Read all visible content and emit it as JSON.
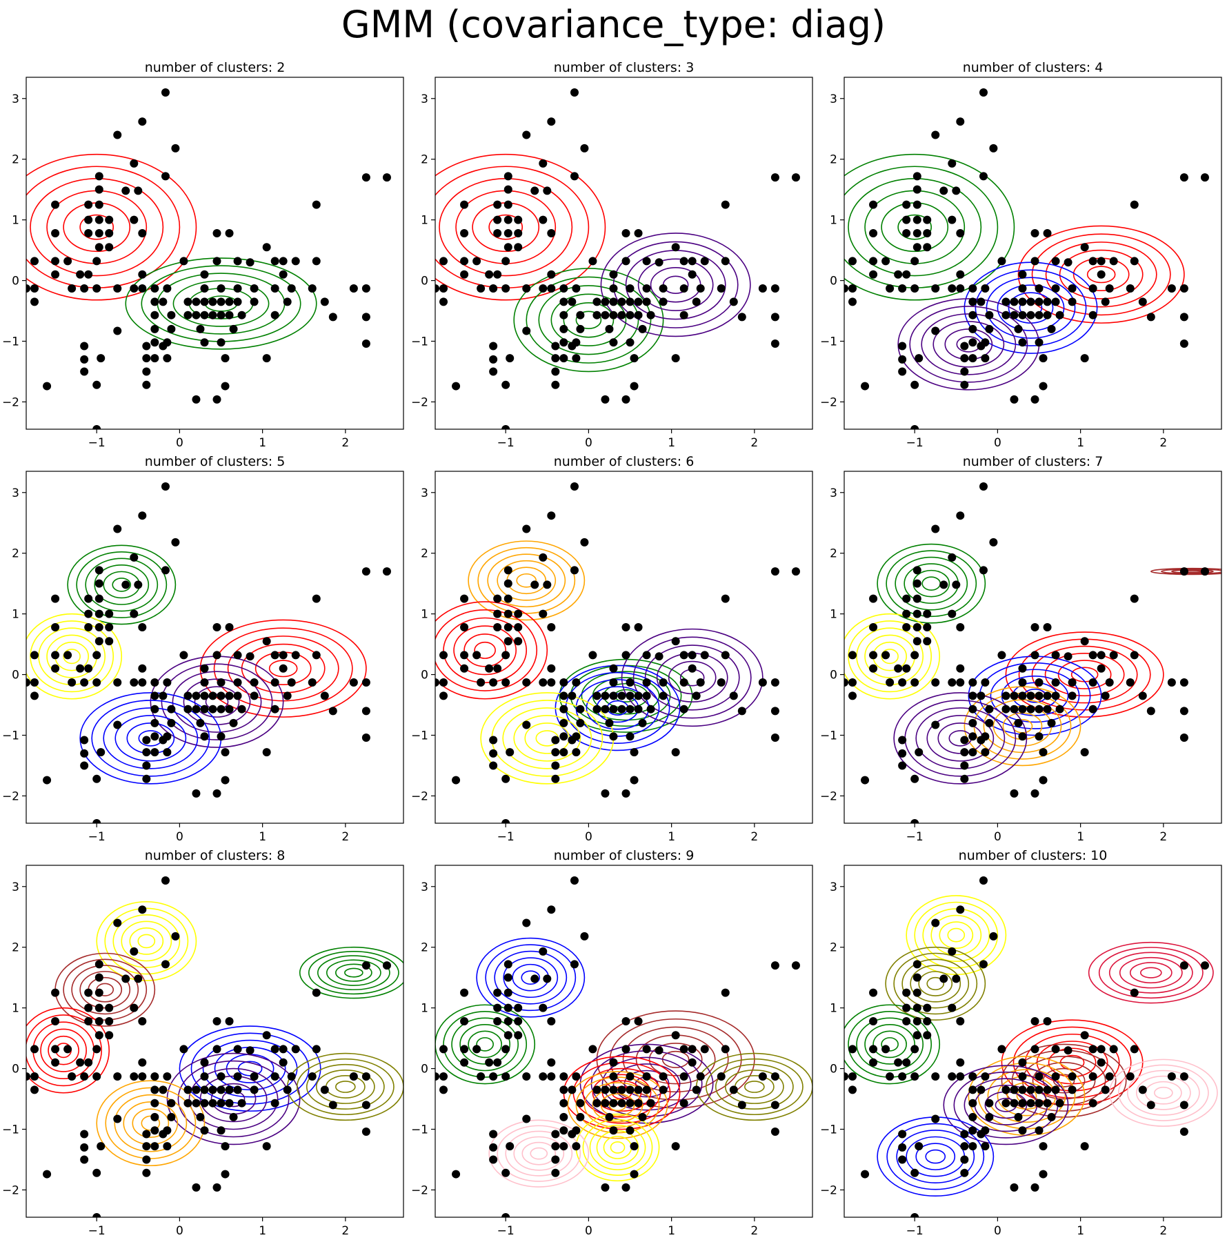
{
  "figure": {
    "title": "GMM (covariance_type: diag)"
  },
  "colors": {
    "points": "#000000",
    "red": "#ff0000",
    "green": "#008000",
    "indigo": "#4b0082",
    "blue": "#0000ff",
    "yellow": "#ffff00",
    "orange": "#ffa500",
    "brown": "#a52a2a",
    "olive": "#808000",
    "pink": "#ffc0cb",
    "crimson": "#dc143c"
  },
  "chart_data": {
    "type": "scatter",
    "xlim": [
      -1.85,
      2.7
    ],
    "ylim": [
      -2.45,
      3.35
    ],
    "xticks": [
      -1,
      0,
      1,
      2
    ],
    "yticks": [
      -2,
      -1,
      0,
      1,
      2,
      3
    ],
    "points": [
      [
        -0.17,
        3.1
      ],
      [
        -0.45,
        2.62
      ],
      [
        -0.75,
        2.4
      ],
      [
        -0.05,
        2.18
      ],
      [
        -0.55,
        1.93
      ],
      [
        -0.17,
        1.72
      ],
      [
        -0.97,
        1.72
      ],
      [
        2.25,
        1.7
      ],
      [
        2.5,
        1.7
      ],
      [
        -0.97,
        1.5
      ],
      [
        -0.65,
        1.48
      ],
      [
        -0.5,
        1.48
      ],
      [
        -1.5,
        1.25
      ],
      [
        -1.1,
        1.25
      ],
      [
        -0.97,
        1.25
      ],
      [
        1.65,
        1.25
      ],
      [
        -1.1,
        1.0
      ],
      [
        -0.97,
        1.0
      ],
      [
        -0.85,
        1.0
      ],
      [
        -0.55,
        1.0
      ],
      [
        -1.1,
        0.78
      ],
      [
        -0.97,
        0.78
      ],
      [
        -0.85,
        0.78
      ],
      [
        -1.5,
        0.78
      ],
      [
        -0.45,
        0.78
      ],
      [
        0.45,
        0.78
      ],
      [
        0.6,
        0.78
      ],
      [
        -0.97,
        0.55
      ],
      [
        -0.85,
        0.55
      ],
      [
        1.05,
        0.55
      ],
      [
        -1.75,
        0.32
      ],
      [
        -1.5,
        0.32
      ],
      [
        -1.35,
        0.32
      ],
      [
        -1.0,
        0.32
      ],
      [
        0.05,
        0.32
      ],
      [
        0.45,
        0.32
      ],
      [
        0.7,
        0.32
      ],
      [
        1.15,
        0.32
      ],
      [
        1.25,
        0.32
      ],
      [
        1.4,
        0.32
      ],
      [
        1.65,
        0.32
      ],
      [
        0.85,
        0.3
      ],
      [
        -1.5,
        0.1
      ],
      [
        -1.2,
        0.1
      ],
      [
        -1.1,
        0.1
      ],
      [
        -0.45,
        0.1
      ],
      [
        0.3,
        0.1
      ],
      [
        1.25,
        0.1
      ],
      [
        -1.85,
        -0.13
      ],
      [
        -1.75,
        -0.13
      ],
      [
        -1.3,
        -0.13
      ],
      [
        -1.15,
        -0.13
      ],
      [
        -1.0,
        -0.13
      ],
      [
        -0.75,
        -0.13
      ],
      [
        -0.55,
        -0.13
      ],
      [
        -0.45,
        -0.13
      ],
      [
        -0.3,
        -0.13
      ],
      [
        -0.15,
        -0.13
      ],
      [
        0.3,
        -0.13
      ],
      [
        0.5,
        -0.13
      ],
      [
        0.7,
        -0.13
      ],
      [
        0.9,
        -0.13
      ],
      [
        1.15,
        -0.13
      ],
      [
        1.35,
        -0.13
      ],
      [
        1.6,
        -0.13
      ],
      [
        2.1,
        -0.13
      ],
      [
        2.25,
        -0.13
      ],
      [
        -1.75,
        -0.35
      ],
      [
        -0.3,
        -0.35
      ],
      [
        -0.2,
        -0.35
      ],
      [
        0.1,
        -0.35
      ],
      [
        0.2,
        -0.35
      ],
      [
        0.3,
        -0.35
      ],
      [
        0.4,
        -0.35
      ],
      [
        0.5,
        -0.35
      ],
      [
        0.6,
        -0.35
      ],
      [
        0.7,
        -0.35
      ],
      [
        0.9,
        -0.35
      ],
      [
        1.3,
        -0.35
      ],
      [
        1.75,
        -0.35
      ],
      [
        -0.3,
        -0.57
      ],
      [
        -0.1,
        -0.57
      ],
      [
        0.1,
        -0.57
      ],
      [
        0.2,
        -0.57
      ],
      [
        0.3,
        -0.57
      ],
      [
        0.4,
        -0.57
      ],
      [
        0.5,
        -0.57
      ],
      [
        0.6,
        -0.57
      ],
      [
        0.75,
        -0.57
      ],
      [
        1.15,
        -0.57
      ],
      [
        1.85,
        -0.6
      ],
      [
        2.25,
        -0.6
      ],
      [
        -0.3,
        -0.8
      ],
      [
        -0.1,
        -0.8
      ],
      [
        0.25,
        -0.8
      ],
      [
        0.65,
        -0.8
      ],
      [
        -0.75,
        -0.83
      ],
      [
        -0.3,
        -1.02
      ],
      [
        -0.15,
        -1.02
      ],
      [
        0.3,
        -1.02
      ],
      [
        0.5,
        -1.02
      ],
      [
        2.25,
        -1.04
      ],
      [
        -0.4,
        -1.08
      ],
      [
        -0.2,
        -1.08
      ],
      [
        -1.15,
        -1.08
      ],
      [
        -0.95,
        -1.28
      ],
      [
        -0.4,
        -1.28
      ],
      [
        -0.3,
        -1.28
      ],
      [
        -0.15,
        -1.28
      ],
      [
        1.05,
        -1.28
      ],
      [
        0.55,
        -1.28
      ],
      [
        -1.15,
        -1.3
      ],
      [
        -0.4,
        -1.5
      ],
      [
        -1.15,
        -1.5
      ],
      [
        -0.4,
        -1.72
      ],
      [
        -1.0,
        -1.72
      ],
      [
        -1.6,
        -1.74
      ],
      [
        0.55,
        -1.74
      ],
      [
        0.2,
        -1.96
      ],
      [
        0.45,
        -1.96
      ],
      [
        -1.0,
        -2.45
      ]
    ],
    "subplots": [
      {
        "title": "number of clusters: 2",
        "components": [
          {
            "color": "red",
            "mean": [
              -1.0,
              0.88
            ],
            "scale": [
              1.2,
              1.2
            ],
            "levels": 6
          },
          {
            "color": "green",
            "mean": [
              0.5,
              -0.38
            ],
            "scale": [
              1.15,
              0.75
            ],
            "levels": 6
          }
        ]
      },
      {
        "title": "number of clusters: 3",
        "components": [
          {
            "color": "red",
            "mean": [
              -1.0,
              0.88
            ],
            "scale": [
              1.2,
              1.2
            ],
            "levels": 6
          },
          {
            "color": "green",
            "mean": [
              0.0,
              -0.65
            ],
            "scale": [
              0.9,
              0.85
            ],
            "levels": 6
          },
          {
            "color": "indigo",
            "mean": [
              1.05,
              -0.07
            ],
            "scale": [
              0.9,
              0.85
            ],
            "levels": 6
          }
        ]
      },
      {
        "title": "number of clusters: 4",
        "components": [
          {
            "color": "green",
            "mean": [
              -1.0,
              0.88
            ],
            "scale": [
              1.2,
              1.2
            ],
            "levels": 6
          },
          {
            "color": "red",
            "mean": [
              1.25,
              0.1
            ],
            "scale": [
              1.0,
              0.8
            ],
            "levels": 6
          },
          {
            "color": "blue",
            "mean": [
              0.4,
              -0.45
            ],
            "scale": [
              0.8,
              0.75
            ],
            "levels": 6
          },
          {
            "color": "indigo",
            "mean": [
              -0.35,
              -1.05
            ],
            "scale": [
              0.85,
              0.75
            ],
            "levels": 6
          }
        ]
      },
      {
        "title": "number of clusters: 5",
        "components": [
          {
            "color": "green",
            "mean": [
              -0.7,
              1.48
            ],
            "scale": [
              0.65,
              0.65
            ],
            "levels": 6
          },
          {
            "color": "yellow",
            "mean": [
              -1.3,
              0.3
            ],
            "scale": [
              0.6,
              0.7
            ],
            "levels": 6
          },
          {
            "color": "red",
            "mean": [
              1.25,
              0.1
            ],
            "scale": [
              1.0,
              0.8
            ],
            "levels": 6
          },
          {
            "color": "indigo",
            "mean": [
              0.45,
              -0.45
            ],
            "scale": [
              0.8,
              0.75
            ],
            "levels": 6
          },
          {
            "color": "blue",
            "mean": [
              -0.35,
              -1.05
            ],
            "scale": [
              0.85,
              0.75
            ],
            "levels": 6
          }
        ]
      },
      {
        "title": "number of clusters: 6",
        "components": [
          {
            "color": "orange",
            "mean": [
              -0.75,
              1.55
            ],
            "scale": [
              0.7,
              0.65
            ],
            "levels": 6
          },
          {
            "color": "red",
            "mean": [
              -1.25,
              0.4
            ],
            "scale": [
              0.75,
              0.8
            ],
            "levels": 6
          },
          {
            "color": "green",
            "mean": [
              0.45,
              -0.35
            ],
            "scale": [
              0.8,
              0.6
            ],
            "levels": 6
          },
          {
            "color": "indigo",
            "mean": [
              1.25,
              -0.05
            ],
            "scale": [
              0.85,
              0.8
            ],
            "levels": 6
          },
          {
            "color": "blue",
            "mean": [
              0.35,
              -0.55
            ],
            "scale": [
              0.75,
              0.7
            ],
            "levels": 6
          },
          {
            "color": "yellow",
            "mean": [
              -0.5,
              -1.05
            ],
            "scale": [
              0.8,
              0.75
            ],
            "levels": 6
          }
        ]
      },
      {
        "title": "number of clusters: 7",
        "components": [
          {
            "color": "green",
            "mean": [
              -0.8,
              1.5
            ],
            "scale": [
              0.65,
              0.65
            ],
            "levels": 6
          },
          {
            "color": "yellow",
            "mean": [
              -1.3,
              0.3
            ],
            "scale": [
              0.6,
              0.7
            ],
            "levels": 6
          },
          {
            "color": "red",
            "mean": [
              1.05,
              0.0
            ],
            "scale": [
              0.95,
              0.7
            ],
            "levels": 6
          },
          {
            "color": "blue",
            "mean": [
              0.45,
              -0.35
            ],
            "scale": [
              0.8,
              0.65
            ],
            "levels": 6
          },
          {
            "color": "orange",
            "mean": [
              0.3,
              -0.85
            ],
            "scale": [
              0.7,
              0.65
            ],
            "levels": 6
          },
          {
            "color": "indigo",
            "mean": [
              -0.45,
              -1.05
            ],
            "scale": [
              0.8,
              0.75
            ],
            "levels": 6
          },
          {
            "color": "brown",
            "mean": [
              2.35,
              1.7
            ],
            "scale": [
              0.5,
              0.05
            ],
            "levels": 4
          }
        ]
      },
      {
        "title": "number of clusters: 8",
        "components": [
          {
            "color": "yellow",
            "mean": [
              -0.4,
              2.1
            ],
            "scale": [
              0.6,
              0.65
            ],
            "levels": 6
          },
          {
            "color": "brown",
            "mean": [
              -0.9,
              1.3
            ],
            "scale": [
              0.6,
              0.6
            ],
            "levels": 6
          },
          {
            "color": "red",
            "mean": [
              -1.4,
              0.3
            ],
            "scale": [
              0.55,
              0.7
            ],
            "levels": 6
          },
          {
            "color": "green",
            "mean": [
              2.1,
              1.58
            ],
            "scale": [
              0.65,
              0.42
            ],
            "levels": 6
          },
          {
            "color": "blue",
            "mean": [
              0.85,
              0.0
            ],
            "scale": [
              0.85,
              0.7
            ],
            "levels": 6
          },
          {
            "color": "indigo",
            "mean": [
              0.65,
              -0.5
            ],
            "scale": [
              0.8,
              0.75
            ],
            "levels": 6
          },
          {
            "color": "olive",
            "mean": [
              2.0,
              -0.3
            ],
            "scale": [
              0.7,
              0.55
            ],
            "levels": 6
          },
          {
            "color": "orange",
            "mean": [
              -0.35,
              -0.9
            ],
            "scale": [
              0.65,
              0.7
            ],
            "levels": 6
          }
        ]
      },
      {
        "title": "number of clusters: 9",
        "components": [
          {
            "color": "blue",
            "mean": [
              -0.7,
              1.5
            ],
            "scale": [
              0.65,
              0.65
            ],
            "levels": 6
          },
          {
            "color": "green",
            "mean": [
              -1.25,
              0.4
            ],
            "scale": [
              0.6,
              0.65
            ],
            "levels": 6
          },
          {
            "color": "brown",
            "mean": [
              1.05,
              0.15
            ],
            "scale": [
              0.95,
              0.8
            ],
            "levels": 6
          },
          {
            "color": "indigo",
            "mean": [
              0.7,
              -0.25
            ],
            "scale": [
              0.8,
              0.65
            ],
            "levels": 6
          },
          {
            "color": "red",
            "mean": [
              0.4,
              -0.4
            ],
            "scale": [
              0.7,
              0.6
            ],
            "levels": 6
          },
          {
            "color": "orange",
            "mean": [
              0.35,
              -0.6
            ],
            "scale": [
              0.6,
              0.55
            ],
            "levels": 6
          },
          {
            "color": "olive",
            "mean": [
              2.0,
              -0.3
            ],
            "scale": [
              0.7,
              0.55
            ],
            "levels": 6
          },
          {
            "color": "yellow",
            "mean": [
              0.35,
              -1.3
            ],
            "scale": [
              0.5,
              0.55
            ],
            "levels": 6
          },
          {
            "color": "pink",
            "mean": [
              -0.6,
              -1.4
            ],
            "scale": [
              0.6,
              0.55
            ],
            "levels": 6
          }
        ]
      },
      {
        "title": "number of clusters: 10",
        "components": [
          {
            "color": "yellow",
            "mean": [
              -0.5,
              2.2
            ],
            "scale": [
              0.6,
              0.65
            ],
            "levels": 6
          },
          {
            "color": "olive",
            "mean": [
              -0.75,
              1.4
            ],
            "scale": [
              0.6,
              0.6
            ],
            "levels": 6
          },
          {
            "color": "green",
            "mean": [
              -1.3,
              0.4
            ],
            "scale": [
              0.6,
              0.65
            ],
            "levels": 6
          },
          {
            "color": "crimson",
            "mean": [
              1.85,
              1.58
            ],
            "scale": [
              0.75,
              0.5
            ],
            "levels": 6
          },
          {
            "color": "red",
            "mean": [
              0.9,
              0.1
            ],
            "scale": [
              0.85,
              0.7
            ],
            "levels": 6
          },
          {
            "color": "brown",
            "mean": [
              0.8,
              -0.2
            ],
            "scale": [
              0.75,
              0.6
            ],
            "levels": 6
          },
          {
            "color": "orange",
            "mean": [
              0.35,
              -0.45
            ],
            "scale": [
              0.7,
              0.65
            ],
            "levels": 6
          },
          {
            "color": "indigo",
            "mean": [
              0.1,
              -0.6
            ],
            "scale": [
              0.75,
              0.65
            ],
            "levels": 6
          },
          {
            "color": "pink",
            "mean": [
              2.0,
              -0.4
            ],
            "scale": [
              0.65,
              0.55
            ],
            "levels": 6
          },
          {
            "color": "blue",
            "mean": [
              -0.75,
              -1.45
            ],
            "scale": [
              0.7,
              0.65
            ],
            "levels": 6
          }
        ]
      }
    ]
  }
}
